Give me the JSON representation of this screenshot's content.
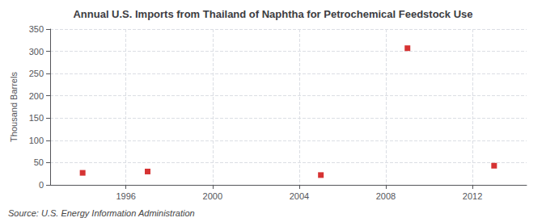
{
  "chart_data": {
    "type": "scatter",
    "title": "Annual U.S. Imports from Thailand of Naphtha for Petrochemical Feedstock Use",
    "ylabel": "Thousand Barrels",
    "source": "Source: U.S. Energy Information Administration",
    "x": [
      1994,
      1997,
      2005,
      2009,
      2013
    ],
    "values": [
      27,
      30,
      22,
      307,
      43
    ],
    "color": "#cc0000",
    "marker": "square",
    "xlim": [
      1992.5,
      2014.5
    ],
    "xticks": [
      1996,
      2000,
      2004,
      2008,
      2012
    ],
    "ylim": [
      0,
      350
    ],
    "yticks": [
      0,
      50,
      100,
      150,
      200,
      250,
      300,
      350
    ],
    "grid": true
  }
}
